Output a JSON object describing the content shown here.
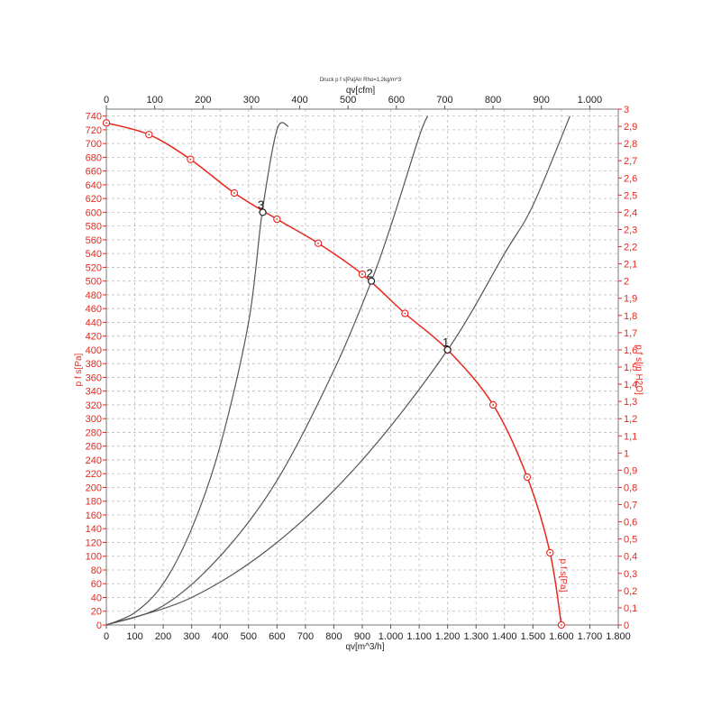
{
  "chart_data": {
    "type": "line",
    "title": "Druck p f s[Pa]Air Rho=1,2kg/m^3",
    "x_axis_bottom": {
      "label": "qv[m^3/h]",
      "range": [
        0,
        1800
      ],
      "ticks": [
        "0",
        "100",
        "200",
        "300",
        "400",
        "500",
        "600",
        "700",
        "800",
        "900",
        "1.000",
        "1.100",
        "1.200",
        "1.300",
        "1.400",
        "1.500",
        "1.600",
        "1.700",
        "1.800"
      ]
    },
    "x_axis_top": {
      "label": "qv[cfm]",
      "range": [
        0,
        1059
      ],
      "ticks": [
        "0",
        "100",
        "200",
        "300",
        "400",
        "500",
        "600",
        "700",
        "800",
        "900",
        "1.000"
      ]
    },
    "y_axis_left": {
      "label": "p f s[Pa]",
      "range": [
        0,
        750
      ],
      "ticks": [
        "0",
        "20",
        "40",
        "60",
        "80",
        "100",
        "120",
        "140",
        "160",
        "180",
        "200",
        "220",
        "240",
        "260",
        "280",
        "300",
        "320",
        "340",
        "360",
        "380",
        "400",
        "420",
        "440",
        "460",
        "480",
        "500",
        "520",
        "540",
        "560",
        "580",
        "600",
        "620",
        "640",
        "660",
        "680",
        "700",
        "720",
        "740"
      ]
    },
    "y_axis_right": {
      "label": "p f s[in H2O]",
      "range": [
        0,
        3
      ],
      "ticks": [
        "0",
        "0,1",
        "0,2",
        "0,3",
        "0,4",
        "0,5",
        "0,6",
        "0,7",
        "0,8",
        "0,9",
        "1",
        "1,1",
        "1,2",
        "1,3",
        "1,4",
        "1,5",
        "1,6",
        "1,7",
        "1,8",
        "1,9",
        "2",
        "2,1",
        "2,2",
        "2,3",
        "2,4",
        "2,5",
        "2,6",
        "2,7",
        "2,8",
        "2,9",
        "3"
      ]
    },
    "grid": true,
    "fan_curve": {
      "name": "p f s[Pa]",
      "color": "#e8261c",
      "x": [
        0,
        150,
        296,
        450,
        600,
        745,
        900,
        1050,
        1200,
        1360,
        1480,
        1560,
        1600
      ],
      "y": [
        730,
        713,
        677,
        628,
        590,
        555,
        510,
        453,
        400,
        320,
        215,
        105,
        0
      ]
    },
    "system_curves": [
      {
        "label": "3",
        "color": "#555555",
        "x": [
          0,
          100,
          200,
          300,
          400,
          500,
          548,
          600,
          640
        ],
        "y": [
          0,
          18,
          60,
          140,
          260,
          440,
          600,
          720,
          725
        ]
      },
      {
        "label": "2",
        "color": "#555555",
        "x": [
          0,
          200,
          400,
          600,
          800,
          932,
          1000,
          1100,
          1130
        ],
        "y": [
          0,
          28,
          100,
          210,
          370,
          500,
          580,
          710,
          740
        ]
      },
      {
        "label": "1",
        "color": "#555555",
        "x": [
          0,
          300,
          600,
          900,
          1200,
          1400,
          1500,
          1630
        ],
        "y": [
          0,
          40,
          120,
          240,
          400,
          540,
          610,
          740
        ]
      }
    ],
    "operating_points": [
      {
        "label": "3",
        "x": 550,
        "y": 600
      },
      {
        "label": "2",
        "x": 932,
        "y": 500
      },
      {
        "label": "1",
        "x": 1200,
        "y": 400
      }
    ]
  }
}
